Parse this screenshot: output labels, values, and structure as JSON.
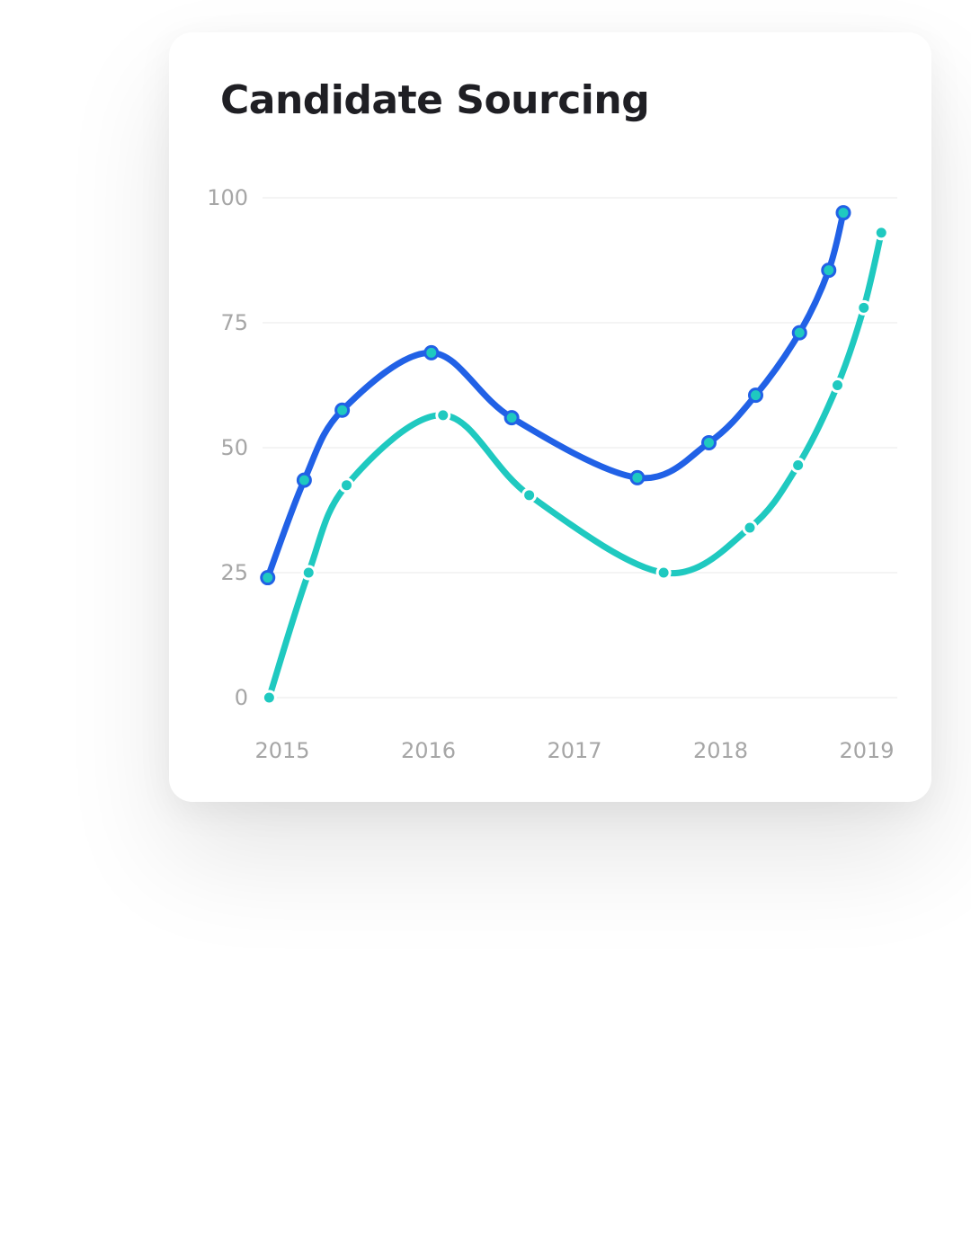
{
  "card": {
    "title": "Candidate Sourcing"
  },
  "chart_data": {
    "type": "line",
    "title": "Candidate Sourcing",
    "xlabel": "",
    "ylabel": "",
    "x_ticks": [
      "2015",
      "2016",
      "2017",
      "2018",
      "2019"
    ],
    "xlim": [
      2015,
      2019
    ],
    "y_ticks": [
      0,
      25,
      50,
      75,
      100
    ],
    "ylim": [
      0,
      100
    ],
    "grid": "horizontal",
    "legend": "none",
    "series": [
      {
        "color": "#2161e6",
        "marker_fill": "#1fc9c0",
        "marker_stroke": "#2161e6",
        "x": [
          2014.9,
          2015.15,
          2015.41,
          2016.02,
          2016.57,
          2017.43,
          2017.92,
          2018.24,
          2018.54,
          2018.74,
          2018.84
        ],
        "y": [
          24,
          43.5,
          57.5,
          69,
          56,
          44,
          51,
          60.5,
          73,
          85.5,
          97
        ]
      },
      {
        "color": "#1fc9c0",
        "marker_fill": "#1fc9c0",
        "marker_stroke": "#ffffff",
        "x": [
          2014.91,
          2015.18,
          2015.44,
          2016.1,
          2016.69,
          2017.61,
          2018.2,
          2018.53,
          2018.8,
          2018.98,
          2019.1
        ],
        "y": [
          0,
          25,
          42.5,
          56.5,
          40.5,
          25,
          34,
          46.5,
          62.5,
          78,
          93
        ]
      }
    ]
  }
}
